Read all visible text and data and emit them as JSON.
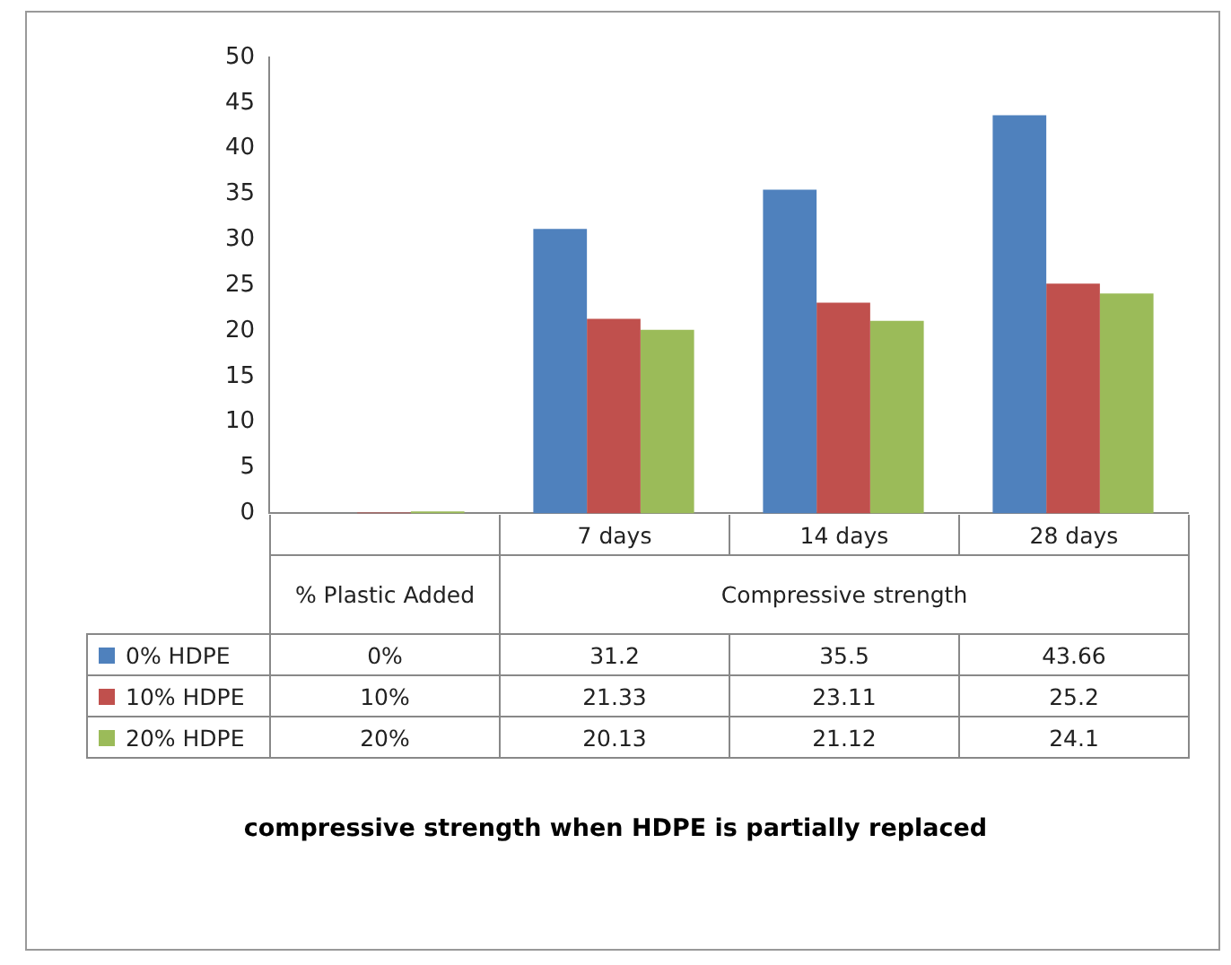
{
  "chart_data": {
    "type": "bar",
    "title": "compressive strength when HDPE is partially replaced",
    "categories": [
      null,
      "7 days",
      "14 days",
      "28 days"
    ],
    "series": [
      {
        "name": "0% HDPE",
        "color": "#4f81bd",
        "values": [
          0,
          31.2,
          35.5,
          43.66
        ],
        "value_labels": [
          "0%",
          "31.2",
          "35.5",
          "43.66"
        ]
      },
      {
        "name": "10% HDPE",
        "color": "#c0504d",
        "values": [
          0.1,
          21.33,
          23.11,
          25.2
        ],
        "value_labels": [
          "10%",
          "21.33",
          "23.11",
          "25.2"
        ]
      },
      {
        "name": "20% HDPE",
        "color": "#9bbb59",
        "values": [
          0.2,
          20.13,
          21.12,
          24.1
        ],
        "value_labels": [
          "20%",
          "20.13",
          "21.12",
          "24.1"
        ]
      }
    ],
    "ylim": [
      0,
      50
    ],
    "yticks": [
      0,
      5,
      10,
      15,
      20,
      25,
      30,
      35,
      40,
      45,
      50
    ],
    "legend": "bottom left",
    "annotations": [
      "% Plastic Added",
      "Compressive strength"
    ]
  }
}
